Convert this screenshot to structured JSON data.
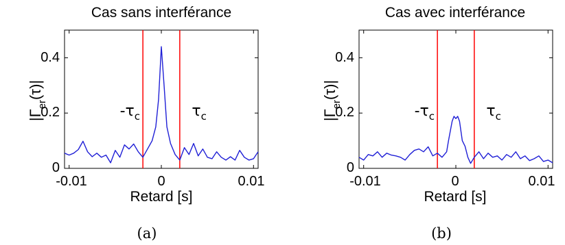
{
  "chart_data": [
    {
      "type": "line",
      "panel_label": "(a)",
      "title": "Cas sans interférance",
      "xlabel": "Retard [s]",
      "ylabel": {
        "prefix": "|Γ",
        "subscript": "er",
        "suffix": "(τ)|"
      },
      "xlim": [
        -0.0105,
        0.0105
      ],
      "ylim": [
        0,
        0.5
      ],
      "xticks": [
        -0.01,
        0,
        0.01
      ],
      "xtick_labels": [
        "-0.01",
        "0",
        "0.01"
      ],
      "yticks": [
        0,
        0.2,
        0.4
      ],
      "ytick_labels": [
        "0",
        "0.2",
        "0.4"
      ],
      "grid": false,
      "line_color": "#1f1fd6",
      "marker_color": "#ff0000",
      "vertical_lines": [
        -0.002,
        0.002
      ],
      "annotations": [
        {
          "base": "-τ",
          "sub": "c",
          "x": -0.0045,
          "y": 0.19
        },
        {
          "base": "τ",
          "sub": "c",
          "x": 0.0033,
          "y": 0.19
        }
      ],
      "series": [
        {
          "x": [
            -0.0105,
            -0.01,
            -0.0095,
            -0.009,
            -0.0085,
            -0.008,
            -0.0075,
            -0.007,
            -0.0065,
            -0.006,
            -0.0055,
            -0.005,
            -0.0045,
            -0.004,
            -0.0035,
            -0.003,
            -0.0025,
            -0.002,
            -0.0015,
            -0.001,
            -0.0006,
            -0.0003,
            0,
            0.0003,
            0.0006,
            0.001,
            0.0015,
            0.002,
            0.0025,
            0.003,
            0.0035,
            0.004,
            0.0045,
            0.005,
            0.0055,
            0.006,
            0.0065,
            0.007,
            0.0075,
            0.008,
            0.0085,
            0.009,
            0.0095,
            0.01,
            0.0105
          ],
          "y": [
            0.055,
            0.048,
            0.055,
            0.068,
            0.098,
            0.06,
            0.042,
            0.055,
            0.04,
            0.048,
            0.02,
            0.065,
            0.04,
            0.085,
            0.07,
            0.088,
            0.06,
            0.04,
            0.07,
            0.1,
            0.15,
            0.25,
            0.44,
            0.3,
            0.15,
            0.09,
            0.05,
            0.03,
            0.075,
            0.05,
            0.09,
            0.045,
            0.07,
            0.04,
            0.035,
            0.06,
            0.04,
            0.03,
            0.042,
            0.03,
            0.065,
            0.04,
            0.03,
            0.035,
            0.06
          ]
        }
      ]
    },
    {
      "type": "line",
      "panel_label": "(b)",
      "title": "Cas avec interférance",
      "xlabel": "Retard [s]",
      "ylabel": {
        "prefix": "|Γ",
        "subscript": "er",
        "suffix": "(τ)|"
      },
      "xlim": [
        -0.0105,
        0.0105
      ],
      "ylim": [
        0,
        0.5
      ],
      "xticks": [
        -0.01,
        0,
        0.01
      ],
      "xtick_labels": [
        "-0.01",
        "0",
        "0.01"
      ],
      "yticks": [
        0,
        0.2,
        0.4
      ],
      "ytick_labels": [
        "0",
        "0.2",
        "0.4"
      ],
      "grid": false,
      "line_color": "#1f1fd6",
      "marker_color": "#ff0000",
      "vertical_lines": [
        -0.002,
        0.002
      ],
      "annotations": [
        {
          "base": "-τ",
          "sub": "c",
          "x": -0.0045,
          "y": 0.19
        },
        {
          "base": "τ",
          "sub": "c",
          "x": 0.0033,
          "y": 0.19
        }
      ],
      "series": [
        {
          "x": [
            -0.0105,
            -0.01,
            -0.0095,
            -0.009,
            -0.0085,
            -0.008,
            -0.0075,
            -0.007,
            -0.0065,
            -0.006,
            -0.0055,
            -0.005,
            -0.0045,
            -0.004,
            -0.0035,
            -0.003,
            -0.0025,
            -0.002,
            -0.0015,
            -0.001,
            -0.0008,
            -0.0004,
            -0.0002,
            0,
            0.0002,
            0.0004,
            0.0007,
            0.001,
            0.0013,
            0.0016,
            0.002,
            0.0025,
            0.003,
            0.0035,
            0.004,
            0.0045,
            0.005,
            0.0055,
            0.006,
            0.0065,
            0.007,
            0.0075,
            0.008,
            0.0085,
            0.009,
            0.0095,
            0.01,
            0.0105
          ],
          "y": [
            0.04,
            0.03,
            0.05,
            0.045,
            0.06,
            0.04,
            0.055,
            0.048,
            0.045,
            0.04,
            0.03,
            0.05,
            0.065,
            0.07,
            0.06,
            0.078,
            0.045,
            0.055,
            0.04,
            0.06,
            0.1,
            0.17,
            0.188,
            0.18,
            0.188,
            0.17,
            0.1,
            0.08,
            0.04,
            0.018,
            0.04,
            0.06,
            0.035,
            0.055,
            0.04,
            0.045,
            0.03,
            0.05,
            0.04,
            0.06,
            0.035,
            0.045,
            0.028,
            0.035,
            0.045,
            0.025,
            0.03,
            0.02
          ]
        }
      ]
    }
  ]
}
